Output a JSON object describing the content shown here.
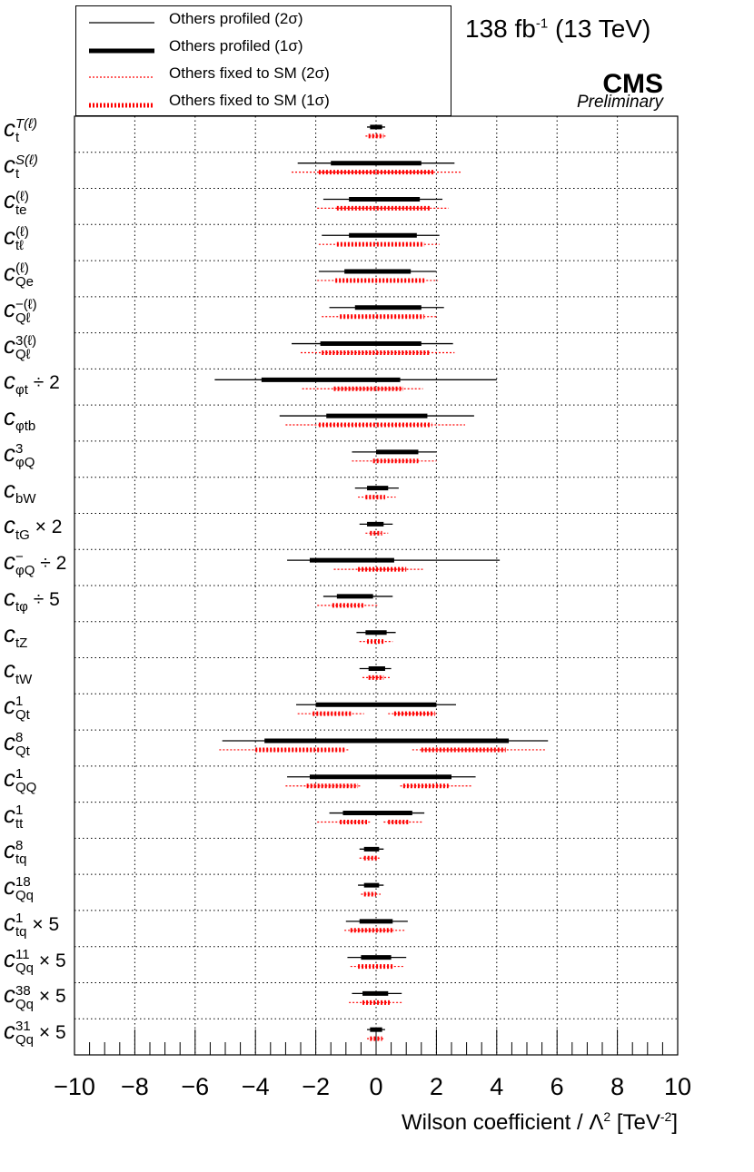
{
  "header": {
    "lumi_text": "138 fb",
    "lumi_sup": "-1",
    "energy_text": "(13 TeV)",
    "experiment": "CMS",
    "status": "Preliminary"
  },
  "legend": [
    {
      "label": "Others profiled (2σ)",
      "style": "solid-thin",
      "color": "#000000"
    },
    {
      "label": "Others profiled (1σ)",
      "style": "solid-thick",
      "color": "#000000"
    },
    {
      "label": "Others fixed to SM (2σ)",
      "style": "dotted-thin",
      "color": "#ff0000"
    },
    {
      "label": "Others fixed to SM (1σ)",
      "style": "dotted-thick",
      "color": "#ff0000"
    }
  ],
  "xaxis": {
    "title": "Wilson coefficient / Λ",
    "title_sup": "2",
    "unit": "[TeV",
    "unit_sup": "-2",
    "unit_end": "]"
  },
  "chart_data": {
    "type": "interval",
    "xlim": [
      -10,
      10
    ],
    "xticks": [
      -10,
      -8,
      -6,
      -4,
      -2,
      0,
      2,
      4,
      6,
      8,
      10
    ],
    "grid": true,
    "legend_position": "top-left",
    "rows": [
      {
        "label": {
          "base": "c",
          "sub": "t",
          "sup": "T(ℓ)"
        },
        "suffix": "",
        "profiled_2s": [
          [
            -0.3,
            0.3
          ]
        ],
        "profiled_1s": [
          [
            -0.2,
            0.2
          ]
        ],
        "fixed_2s": [
          [
            -0.35,
            0.35
          ]
        ],
        "fixed_1s": [
          [
            -0.25,
            0.25
          ]
        ]
      },
      {
        "label": {
          "base": "c",
          "sub": "t",
          "sup": "S(ℓ)"
        },
        "suffix": "",
        "profiled_2s": [
          [
            -2.6,
            2.6
          ]
        ],
        "profiled_1s": [
          [
            -1.5,
            1.5
          ]
        ],
        "fixed_2s": [
          [
            -2.8,
            2.8
          ]
        ],
        "fixed_1s": [
          [
            -1.9,
            1.9
          ]
        ]
      },
      {
        "label": {
          "base": "c",
          "sub": "te",
          "sup": "(ℓ)"
        },
        "suffix": "",
        "profiled_2s": [
          [
            -1.75,
            2.2
          ]
        ],
        "profiled_1s": [
          [
            -0.9,
            1.45
          ]
        ],
        "fixed_2s": [
          [
            -1.95,
            2.4
          ]
        ],
        "fixed_1s": [
          [
            -1.3,
            1.8
          ]
        ]
      },
      {
        "label": {
          "base": "c",
          "sub": "tℓ",
          "sup": "(ℓ)"
        },
        "suffix": "",
        "profiled_2s": [
          [
            -1.8,
            2.1
          ]
        ],
        "profiled_1s": [
          [
            -0.9,
            1.35
          ]
        ],
        "fixed_2s": [
          [
            -1.9,
            2.1
          ]
        ],
        "fixed_1s": [
          [
            -1.3,
            1.6
          ]
        ]
      },
      {
        "label": {
          "base": "c",
          "sub": "Qe",
          "sup": "(ℓ)"
        },
        "suffix": "",
        "profiled_2s": [
          [
            -1.9,
            2.0
          ]
        ],
        "profiled_1s": [
          [
            -1.05,
            1.15
          ]
        ],
        "fixed_2s": [
          [
            -1.95,
            2.05
          ]
        ],
        "fixed_1s": [
          [
            -1.35,
            1.6
          ]
        ]
      },
      {
        "label": {
          "base": "c",
          "sub": "Qℓ",
          "sup": "−(ℓ)"
        },
        "suffix": "",
        "profiled_2s": [
          [
            -1.55,
            2.25
          ]
        ],
        "profiled_1s": [
          [
            -0.7,
            1.5
          ]
        ],
        "fixed_2s": [
          [
            -1.8,
            2.05
          ]
        ],
        "fixed_1s": [
          [
            -1.2,
            1.6
          ]
        ]
      },
      {
        "label": {
          "base": "c",
          "sub": "Qℓ",
          "sup": "3(ℓ)"
        },
        "suffix": "",
        "profiled_2s": [
          [
            -2.8,
            2.55
          ]
        ],
        "profiled_1s": [
          [
            -1.85,
            1.5
          ]
        ],
        "fixed_2s": [
          [
            -2.5,
            2.6
          ]
        ],
        "fixed_1s": [
          [
            -1.8,
            1.8
          ]
        ]
      },
      {
        "label": {
          "base": "c",
          "sub": "φt",
          "sup": ""
        },
        "suffix": "÷ 2",
        "profiled_2s": [
          [
            -5.35,
            4.0
          ]
        ],
        "profiled_1s": [
          [
            -3.8,
            0.8
          ]
        ],
        "fixed_2s": [
          [
            -2.45,
            1.55
          ]
        ],
        "fixed_1s": [
          [
            -1.4,
            0.9
          ]
        ]
      },
      {
        "label": {
          "base": "c",
          "sub": "φtb",
          "sup": ""
        },
        "suffix": "",
        "profiled_2s": [
          [
            -3.2,
            3.25
          ]
        ],
        "profiled_1s": [
          [
            -1.65,
            1.7
          ]
        ],
        "fixed_2s": [
          [
            -3.0,
            2.95
          ]
        ],
        "fixed_1s": [
          [
            -1.9,
            1.85
          ]
        ]
      },
      {
        "label": {
          "base": "c",
          "sub": "φQ",
          "sup": "3"
        },
        "suffix": "",
        "profiled_2s": [
          [
            -0.8,
            2.0
          ]
        ],
        "profiled_1s": [
          [
            0.0,
            1.4
          ]
        ],
        "fixed_2s": [
          [
            -0.8,
            2.0
          ]
        ],
        "fixed_1s": [
          [
            -0.1,
            1.4
          ]
        ]
      },
      {
        "label": {
          "base": "c",
          "sub": "bW",
          "sup": ""
        },
        "suffix": "",
        "profiled_2s": [
          [
            -0.7,
            0.75
          ]
        ],
        "profiled_1s": [
          [
            -0.3,
            0.4
          ]
        ],
        "fixed_2s": [
          [
            -0.6,
            0.65
          ]
        ],
        "fixed_1s": [
          [
            -0.35,
            0.3
          ]
        ]
      },
      {
        "label": {
          "base": "c",
          "sub": "tG",
          "sup": ""
        },
        "suffix": "× 2",
        "profiled_2s": [
          [
            -0.55,
            0.55
          ]
        ],
        "profiled_1s": [
          [
            -0.3,
            0.25
          ]
        ],
        "fixed_2s": [
          [
            -0.35,
            0.4
          ]
        ],
        "fixed_1s": [
          [
            -0.2,
            0.2
          ]
        ]
      },
      {
        "label": {
          "base": "c",
          "sub": "φQ",
          "sup": "−"
        },
        "suffix": "÷ 2",
        "profiled_2s": [
          [
            -2.95,
            4.1
          ]
        ],
        "profiled_1s": [
          [
            -2.2,
            0.6
          ]
        ],
        "fixed_2s": [
          [
            -1.4,
            1.55
          ]
        ],
        "fixed_1s": [
          [
            -0.6,
            1.0
          ]
        ]
      },
      {
        "label": {
          "base": "c",
          "sub": "tφ",
          "sup": ""
        },
        "suffix": "÷ 5",
        "profiled_2s": [
          [
            -1.75,
            0.55
          ]
        ],
        "profiled_1s": [
          [
            -1.3,
            -0.1
          ]
        ],
        "fixed_2s": [
          [
            -1.95,
            0.05
          ]
        ],
        "fixed_1s": [
          [
            -1.45,
            -0.4
          ]
        ]
      },
      {
        "label": {
          "base": "c",
          "sub": "tZ",
          "sup": ""
        },
        "suffix": "",
        "profiled_2s": [
          [
            -0.65,
            0.65
          ]
        ],
        "profiled_1s": [
          [
            -0.35,
            0.35
          ]
        ],
        "fixed_2s": [
          [
            -0.55,
            0.55
          ]
        ],
        "fixed_1s": [
          [
            -0.3,
            0.3
          ]
        ]
      },
      {
        "label": {
          "base": "c",
          "sub": "tW",
          "sup": ""
        },
        "suffix": "",
        "profiled_2s": [
          [
            -0.55,
            0.5
          ]
        ],
        "profiled_1s": [
          [
            -0.25,
            0.3
          ]
        ],
        "fixed_2s": [
          [
            -0.45,
            0.45
          ]
        ],
        "fixed_1s": [
          [
            -0.25,
            0.25
          ]
        ]
      },
      {
        "label": {
          "base": "c",
          "sub": "Qt",
          "sup": "1"
        },
        "suffix": "",
        "profiled_2s": [
          [
            -2.65,
            2.65
          ]
        ],
        "profiled_1s": [
          [
            -2.0,
            2.0
          ]
        ],
        "fixed_2s": [
          [
            -2.6,
            -0.4
          ],
          [
            0.4,
            2.0
          ]
        ],
        "fixed_1s": [
          [
            -2.1,
            -0.8
          ],
          [
            0.6,
            1.95
          ]
        ]
      },
      {
        "label": {
          "base": "c",
          "sub": "Qt",
          "sup": "8"
        },
        "suffix": "",
        "profiled_2s": [
          [
            -5.1,
            5.7
          ]
        ],
        "profiled_1s": [
          [
            -3.7,
            4.4
          ]
        ],
        "fixed_2s": [
          [
            -5.2,
            -0.9
          ],
          [
            1.2,
            5.6
          ]
        ],
        "fixed_1s": [
          [
            -4.0,
            -1.0
          ],
          [
            1.5,
            4.3
          ]
        ]
      },
      {
        "label": {
          "base": "c",
          "sub": "QQ",
          "sup": "1"
        },
        "suffix": "",
        "profiled_2s": [
          [
            -2.95,
            3.3
          ]
        ],
        "profiled_1s": [
          [
            -2.2,
            2.5
          ]
        ],
        "fixed_2s": [
          [
            -3.0,
            -0.5
          ],
          [
            0.8,
            3.2
          ]
        ],
        "fixed_1s": [
          [
            -2.3,
            -0.6
          ],
          [
            0.9,
            2.4
          ]
        ]
      },
      {
        "label": {
          "base": "c",
          "sub": "tt",
          "sup": "1"
        },
        "suffix": "",
        "profiled_2s": [
          [
            -1.55,
            1.6
          ]
        ],
        "profiled_1s": [
          [
            -1.1,
            1.2
          ]
        ],
        "fixed_2s": [
          [
            -1.95,
            -0.15
          ],
          [
            0.25,
            1.55
          ]
        ],
        "fixed_1s": [
          [
            -1.2,
            -0.3
          ],
          [
            0.4,
            1.1
          ]
        ]
      },
      {
        "label": {
          "base": "c",
          "sub": "tq",
          "sup": "8"
        },
        "suffix": "",
        "profiled_2s": [
          [
            -0.55,
            0.25
          ]
        ],
        "profiled_1s": [
          [
            -0.4,
            0.1
          ]
        ],
        "fixed_2s": [
          [
            -0.55,
            0.15
          ]
        ],
        "fixed_1s": [
          [
            -0.4,
            0.05
          ]
        ]
      },
      {
        "label": {
          "base": "c",
          "sub": "Qq",
          "sup": "18"
        },
        "suffix": "",
        "profiled_2s": [
          [
            -0.6,
            0.25
          ]
        ],
        "profiled_1s": [
          [
            -0.4,
            0.1
          ]
        ],
        "fixed_2s": [
          [
            -0.5,
            0.15
          ]
        ],
        "fixed_1s": [
          [
            -0.4,
            0.0
          ]
        ]
      },
      {
        "label": {
          "base": "c",
          "sub": "tq",
          "sup": "1"
        },
        "suffix": "× 5",
        "profiled_2s": [
          [
            -1.0,
            1.05
          ]
        ],
        "profiled_1s": [
          [
            -0.55,
            0.55
          ]
        ],
        "fixed_2s": [
          [
            -1.05,
            0.95
          ]
        ],
        "fixed_1s": [
          [
            -0.85,
            0.6
          ]
        ]
      },
      {
        "label": {
          "base": "c",
          "sub": "Qq",
          "sup": "11"
        },
        "suffix": "× 5",
        "profiled_2s": [
          [
            -0.95,
            1.0
          ]
        ],
        "profiled_1s": [
          [
            -0.5,
            0.5
          ]
        ],
        "fixed_2s": [
          [
            -0.85,
            0.95
          ]
        ],
        "fixed_1s": [
          [
            -0.6,
            0.6
          ]
        ]
      },
      {
        "label": {
          "base": "c",
          "sub": "Qq",
          "sup": "38"
        },
        "suffix": "× 5",
        "profiled_2s": [
          [
            -0.8,
            0.85
          ]
        ],
        "profiled_1s": [
          [
            -0.45,
            0.4
          ]
        ],
        "fixed_2s": [
          [
            -0.9,
            0.85
          ]
        ],
        "fixed_1s": [
          [
            -0.45,
            0.45
          ]
        ]
      },
      {
        "label": {
          "base": "c",
          "sub": "Qq",
          "sup": "31"
        },
        "suffix": "× 5",
        "profiled_2s": [
          [
            -0.3,
            0.3
          ]
        ],
        "profiled_1s": [
          [
            -0.2,
            0.2
          ]
        ],
        "fixed_2s": [
          [
            -0.3,
            0.3
          ]
        ],
        "fixed_1s": [
          [
            -0.2,
            0.2
          ]
        ]
      }
    ]
  }
}
